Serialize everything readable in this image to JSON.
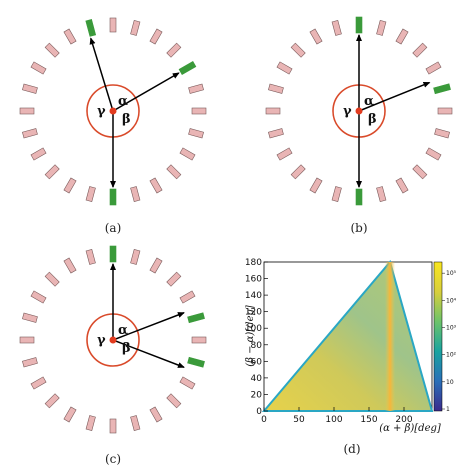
{
  "panels": [
    {
      "id": "a",
      "caption": "(a)",
      "labels": {
        "alpha": "α",
        "beta": "β",
        "gamma": "γ"
      },
      "hit_angles_deg": [
        107,
        30,
        270
      ]
    },
    {
      "id": "b",
      "caption": "(b)",
      "labels": {
        "alpha": "α",
        "beta": "β",
        "gamma": "γ"
      },
      "hit_angles_deg": [
        90,
        22,
        270
      ]
    },
    {
      "id": "c",
      "caption": "(c)",
      "labels": {
        "alpha": "α",
        "beta": "β",
        "gamma": "γ"
      },
      "hit_angles_deg": [
        90,
        21,
        -21
      ]
    }
  ],
  "chart_data": {
    "type": "heatmap",
    "caption": "(d)",
    "xlabel": "(α + β)[deg]",
    "ylabel": "(β − α)[deg]",
    "xlim": [
      0,
      240
    ],
    "ylim": [
      0,
      180
    ],
    "xticks": [
      "0",
      "50",
      "100",
      "150",
      "200"
    ],
    "yticks": [
      "0",
      "20",
      "40",
      "60",
      "80",
      "100",
      "120",
      "140",
      "160",
      "180"
    ],
    "colorbar": {
      "scale": "log",
      "ticks": [
        "1",
        "10",
        "10²",
        "10³",
        "10⁴",
        "10⁵"
      ]
    },
    "region_vertices": [
      [
        0,
        0
      ],
      [
        180,
        180
      ],
      [
        240,
        0
      ]
    ],
    "ridge_x": 180
  },
  "colors": {
    "ring": "#d94a2a",
    "center_dot": "#e23b1f",
    "detector": "#e9b5b5",
    "detector_border": "#7a5a5a",
    "hit_detector": "#3a9a3a",
    "arrow": "#000000"
  }
}
